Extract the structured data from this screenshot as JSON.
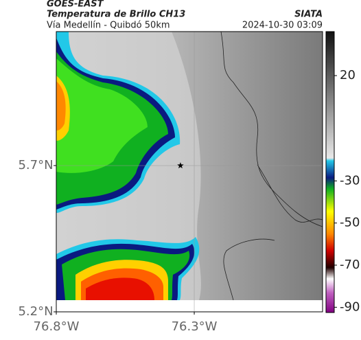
{
  "header": {
    "title": "GOES-EAST",
    "subtitle": "Temperatura de Brillo CH13",
    "source": "SIATA",
    "route": "Vía Medellín - Quibdó 50km",
    "timestamp": "2024-10-30 03:09"
  },
  "map": {
    "xlim": [
      -76.8,
      -75.835
    ],
    "ylim": [
      5.2,
      6.158
    ],
    "xticks": [
      {
        "value": -76.8,
        "label": "76.8°W"
      },
      {
        "value": -76.3,
        "label": "76.3°W"
      }
    ],
    "yticks": [
      {
        "value": 5.7,
        "label": "5.7°N"
      },
      {
        "value": 5.2,
        "label": "5.2°N"
      }
    ],
    "grid": true,
    "marker": {
      "lon": -76.35,
      "lat": 5.7
    }
  },
  "colorbar": {
    "ylim": [
      -92.5,
      40.9
    ],
    "yticks": [
      20,
      -30,
      -50,
      -70,
      -90
    ]
  }
}
